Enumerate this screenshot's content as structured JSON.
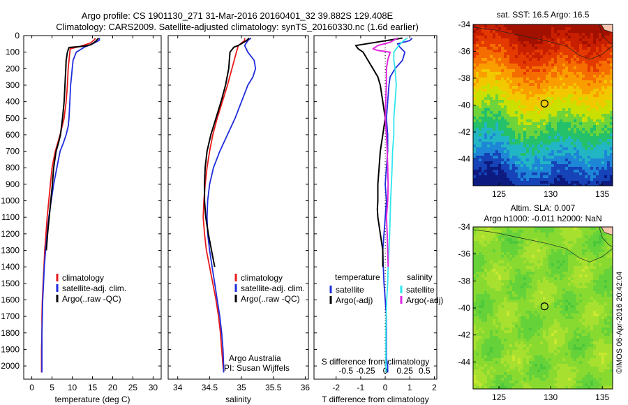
{
  "header": {
    "line1": "Argo profile: CS 1901130_271 31-Mar-2016 20160401_32 39.882S 129.408E",
    "line2": "Climatology: CARS2009. Satellite-adjusted climatology: synTS_20160330.nc (1.6d earlier)"
  },
  "credit": "©IMOS 06-Apr-2016 20:42:04",
  "colors": {
    "climatology": "#e8191a",
    "satellite": "#1f2cdc",
    "argo": "#000000",
    "sat_salinity": "#2fe6ee",
    "argo_salinity": "#e028e0"
  },
  "depth_ticks": [
    0,
    100,
    200,
    300,
    400,
    500,
    600,
    700,
    800,
    900,
    1000,
    1100,
    1200,
    1300,
    1400,
    1500,
    1600,
    1700,
    1800,
    1900,
    2000
  ],
  "chart_data": [
    {
      "type": "line",
      "panel": "temperature",
      "xlabel": "temperature (deg C)",
      "xlim": [
        -2,
        32
      ],
      "ylim": [
        2080,
        0
      ],
      "xticks": [
        0,
        5,
        10,
        15,
        20,
        25,
        30
      ],
      "legend": [
        "climatology",
        "satellite-adj. clim.",
        "Argo(..raw -QC)"
      ],
      "series": [
        {
          "name": "climatology",
          "x": [
            15.7,
            15.5,
            14.5,
            12,
            9.5,
            9.4,
            9.2,
            9,
            8.8,
            8.5,
            8,
            7.5,
            7,
            6.4,
            5.8,
            5,
            4.6,
            4.2,
            3.8,
            3.5,
            3.2,
            3,
            2.8,
            2.6,
            2.5,
            2.5,
            2.4,
            2.4,
            2.4
          ],
          "y": [
            15,
            25,
            45,
            65,
            80,
            100,
            150,
            200,
            300,
            400,
            500,
            550,
            600,
            650,
            700,
            800,
            900,
            1000,
            1100,
            1200,
            1300,
            1400,
            1500,
            1600,
            1700,
            1800,
            1900,
            2000,
            2040
          ]
        },
        {
          "name": "satellite-adj. clim.",
          "x": [
            16.8,
            16.6,
            15,
            13,
            11,
            10.2,
            10,
            9.8,
            9.6,
            9.4,
            9.2,
            9,
            8.5,
            7.8,
            7,
            6.2,
            5.4,
            4.8,
            4.2,
            3.8,
            3.4,
            3.1,
            2.9,
            2.7,
            2.6,
            2.5,
            2.5,
            2.5,
            2.5
          ],
          "y": [
            15,
            30,
            50,
            70,
            100,
            150,
            200,
            250,
            300,
            400,
            500,
            550,
            600,
            650,
            700,
            800,
            900,
            1000,
            1100,
            1200,
            1300,
            1400,
            1500,
            1600,
            1700,
            1800,
            1900,
            2000,
            2040
          ]
        },
        {
          "name": "Argo(..raw -QC)",
          "x": [
            16.5,
            15.8,
            14.6,
            13.5,
            12,
            9.2,
            8.8,
            8.5,
            8.4,
            8.2,
            8,
            7.6,
            7.1,
            6.6,
            6,
            5.4,
            5.1,
            4.7,
            4.3,
            3.9,
            3.6
          ],
          "y": [
            15,
            35,
            55,
            62,
            66,
            72,
            100,
            150,
            200,
            300,
            400,
            500,
            600,
            650,
            700,
            800,
            900,
            1000,
            1100,
            1200,
            1300
          ]
        }
      ]
    },
    {
      "type": "line",
      "panel": "salinity",
      "xlabel": "salinity",
      "xlim": [
        33.85,
        36.05
      ],
      "ylim": [
        2080,
        0
      ],
      "xticks": [
        34,
        34.5,
        35,
        35.5,
        36
      ],
      "legend": [
        "climatology",
        "satellite-adj. clim.",
        "Argo(..raw -QC)"
      ],
      "annotation": [
        "Argo Australia",
        "PI: Susan Wijffels"
      ],
      "series": [
        {
          "name": "climatology",
          "x": [
            35.05,
            35.05,
            34.95,
            34.92,
            34.85,
            34.78,
            34.7,
            34.62,
            34.55,
            34.5,
            34.46,
            34.43,
            34.41,
            34.4,
            34.42,
            34.45,
            34.5,
            34.55,
            34.6,
            34.64,
            34.67,
            34.69,
            34.7,
            34.71,
            34.72,
            34.72
          ],
          "y": [
            15,
            30,
            60,
            100,
            200,
            300,
            400,
            500,
            600,
            700,
            800,
            900,
            1000,
            1100,
            1200,
            1300,
            1400,
            1500,
            1600,
            1700,
            1800,
            1900,
            1950,
            2000,
            2030,
            2040
          ]
        },
        {
          "name": "satellite-adj. clim.",
          "x": [
            35.15,
            35.1,
            35.05,
            35.1,
            35.2,
            35.22,
            35.18,
            35.1,
            35,
            34.9,
            34.78,
            34.66,
            34.56,
            34.5,
            34.47,
            34.46,
            34.47,
            34.5,
            34.54,
            34.58,
            34.62,
            34.66,
            34.69,
            34.71,
            34.72,
            34.72
          ],
          "y": [
            15,
            30,
            60,
            100,
            150,
            200,
            250,
            300,
            400,
            500,
            600,
            700,
            800,
            900,
            1000,
            1100,
            1200,
            1300,
            1400,
            1500,
            1600,
            1700,
            1800,
            1900,
            2000,
            2040
          ]
        },
        {
          "name": "Argo(..raw -QC)",
          "x": [
            35.12,
            35.08,
            34.95,
            34.88,
            34.82,
            34.8,
            34.75,
            34.68,
            34.6,
            34.52,
            34.46,
            34.43,
            34.42,
            34.42,
            34.44,
            34.48,
            34.53,
            34.58
          ],
          "y": [
            15,
            30,
            60,
            70,
            100,
            200,
            300,
            400,
            500,
            600,
            700,
            800,
            900,
            1000,
            1100,
            1200,
            1300,
            1400
          ]
        }
      ]
    },
    {
      "type": "line",
      "panel": "difference",
      "xlabel": "T difference from climatology",
      "top_axis_label": "S difference from climatology",
      "xlim": [
        -2.9,
        2.1
      ],
      "ylim": [
        2080,
        0
      ],
      "xticks": [
        -2,
        -1,
        0,
        1,
        2
      ],
      "top_ticks": [
        "-0.5",
        "-0.25",
        "0",
        "0.25",
        "0.5"
      ],
      "legend_headers": [
        "temperature",
        "salinity"
      ],
      "legend": [
        "satellite",
        "Argo(-adj)",
        "satellite",
        "Argo(-adj)"
      ],
      "series": [
        {
          "name": "satellite",
          "variable": "temperature",
          "x": [
            1.1,
            1,
            0.5,
            0.6,
            0.8,
            0.7,
            0.4,
            0.2,
            0.15,
            0.1,
            0.05,
            0.1,
            0.1,
            0.05,
            0,
            0.05,
            0,
            -0.05,
            -0.1,
            -0.08,
            -0.05,
            0,
            0.05,
            0.05,
            0.05,
            0.05,
            0.1,
            0.1,
            0.1
          ],
          "y": [
            15,
            30,
            50,
            70,
            100,
            150,
            200,
            250,
            300,
            400,
            500,
            600,
            700,
            800,
            900,
            1000,
            1100,
            1200,
            1300,
            1400,
            1500,
            1600,
            1700,
            1800,
            1900,
            1950,
            2000,
            2030,
            2040
          ]
        },
        {
          "name": "Argo(-adj)",
          "variable": "temperature",
          "x": [
            0.7,
            -1.2,
            -1.1,
            -0.9,
            -0.7,
            -0.5,
            -0.3,
            -0.2,
            -0.1,
            0,
            -0.1,
            -0.2,
            -0.25,
            -0.3,
            -0.3,
            -0.32,
            -0.3,
            -0.25,
            -0.2,
            -0.15,
            -0.1,
            -0.1,
            -0.1
          ],
          "y": [
            15,
            60,
            80,
            100,
            150,
            200,
            250,
            300,
            400,
            500,
            600,
            700,
            800,
            900,
            1000,
            1050,
            1100,
            1150,
            1200,
            1250,
            1300,
            1350,
            1400
          ]
        },
        {
          "name": "satellite",
          "variable": "salinity",
          "x": [
            0.9,
            0.75,
            0.55,
            0.35,
            0.35,
            0.4,
            0.45,
            0.4,
            0.35,
            0.35,
            0.3,
            0.28,
            0.25,
            0.22,
            0.2,
            0.18,
            0.15,
            0.12,
            0.1,
            0.06,
            0.04,
            0.03,
            0.03,
            0.03,
            0.03
          ],
          "y": [
            15,
            30,
            60,
            100,
            150,
            200,
            300,
            400,
            500,
            600,
            700,
            800,
            900,
            1000,
            1100,
            1200,
            1300,
            1400,
            1500,
            1600,
            1700,
            1800,
            1900,
            2000,
            2040
          ]
        },
        {
          "name": "Argo(-adj)",
          "variable": "salinity",
          "x": [
            0.5,
            0.2,
            -0.3,
            -0.5,
            -0.3,
            0.2,
            0.1,
            0.05,
            0.05,
            0.02,
            0,
            0.05,
            0.08,
            0.1,
            0.12,
            0.1,
            0.05,
            0.08,
            0.1,
            0.12
          ],
          "y": [
            15,
            40,
            60,
            80,
            90,
            100,
            150,
            200,
            300,
            400,
            500,
            600,
            700,
            800,
            900,
            1000,
            1100,
            1200,
            1300,
            1400
          ]
        }
      ]
    },
    {
      "type": "heatmap",
      "panel": "sst-map",
      "title": "sat. SST: 16.5  Argo: 16.5",
      "xlim": [
        122.5,
        136
      ],
      "ylim": [
        -46,
        -34
      ],
      "xticks": [
        125,
        130,
        135
      ],
      "yticks": [
        -34,
        -36,
        -38,
        -40,
        -42,
        -44
      ],
      "marker": {
        "lon": 129.408,
        "lat": -39.882
      },
      "color_bands": [
        "#a21000",
        "#c81f00",
        "#e43a00",
        "#f56d00",
        "#fa9e00",
        "#f2c800",
        "#c9e000",
        "#6ed43a",
        "#24c06a",
        "#22b6c4",
        "#1e86d6",
        "#1643b8",
        "#0d1a80"
      ]
    },
    {
      "type": "heatmap",
      "panel": "sla-map",
      "title_line1": "Altim. SLA: 0.007",
      "title_line2": "Argo h1000: -0.011  h2000: NaN",
      "xlim": [
        122.5,
        136
      ],
      "ylim": [
        -46,
        -34
      ],
      "xticks": [
        125,
        130,
        135
      ],
      "yticks": [
        -34,
        -36,
        -38,
        -40,
        -42,
        -44
      ],
      "marker": {
        "lon": 129.408,
        "lat": -39.882
      },
      "color_bands": [
        "#4cc83a",
        "#66d23a",
        "#88da30",
        "#a8e030",
        "#c8e830"
      ]
    }
  ]
}
